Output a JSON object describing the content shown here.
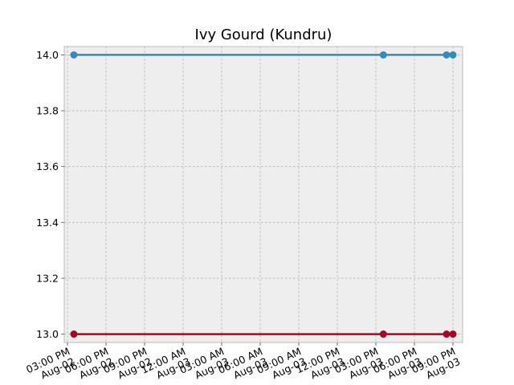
{
  "chart_data": {
    "type": "line",
    "title": "Ivy Gourd (Kundru)",
    "xlabel": "",
    "ylabel": "",
    "x_scale": "time",
    "x_range": [
      "2023-08-02 14:45",
      "2023-08-03 21:45"
    ],
    "ylim": [
      12.97,
      14.03
    ],
    "grid": true,
    "x_ticks": [
      "2023-08-02 15:00",
      "2023-08-02 18:00",
      "2023-08-02 21:00",
      "2023-08-03 00:00",
      "2023-08-03 03:00",
      "2023-08-03 06:00",
      "2023-08-03 09:00",
      "2023-08-03 12:00",
      "2023-08-03 15:00",
      "2023-08-03 18:00",
      "2023-08-03 21:00"
    ],
    "x_tick_labels": [
      "03:00 PM\nAug-02",
      "06:00 PM\nAug-02",
      "09:00 PM\nAug-02",
      "12:00 AM\nAug-03",
      "03:00 AM\nAug-03",
      "06:00 AM\nAug-03",
      "09:00 AM\nAug-03",
      "12:00 PM\nAug-03",
      "03:00 PM\nAug-03",
      "06:00 PM\nAug-03",
      "09:00 PM\nAug-03"
    ],
    "y_ticks": [
      13.0,
      13.2,
      13.4,
      13.6,
      13.8,
      14.0
    ],
    "y_tick_labels": [
      "13.0",
      "13.2",
      "13.4",
      "13.6",
      "13.8",
      "14.0"
    ],
    "series": [
      {
        "color": "#348ABD",
        "x": [
          "2023-08-02 15:30",
          "2023-08-03 15:35",
          "2023-08-03 20:30",
          "2023-08-03 21:00"
        ],
        "y": [
          14.0,
          14.0,
          14.0,
          14.0
        ]
      },
      {
        "color": "#A60628",
        "x": [
          "2023-08-02 15:30",
          "2023-08-03 15:35",
          "2023-08-03 20:30",
          "2023-08-03 21:00"
        ],
        "y": [
          13.0,
          13.0,
          13.0,
          13.0
        ]
      }
    ]
  }
}
